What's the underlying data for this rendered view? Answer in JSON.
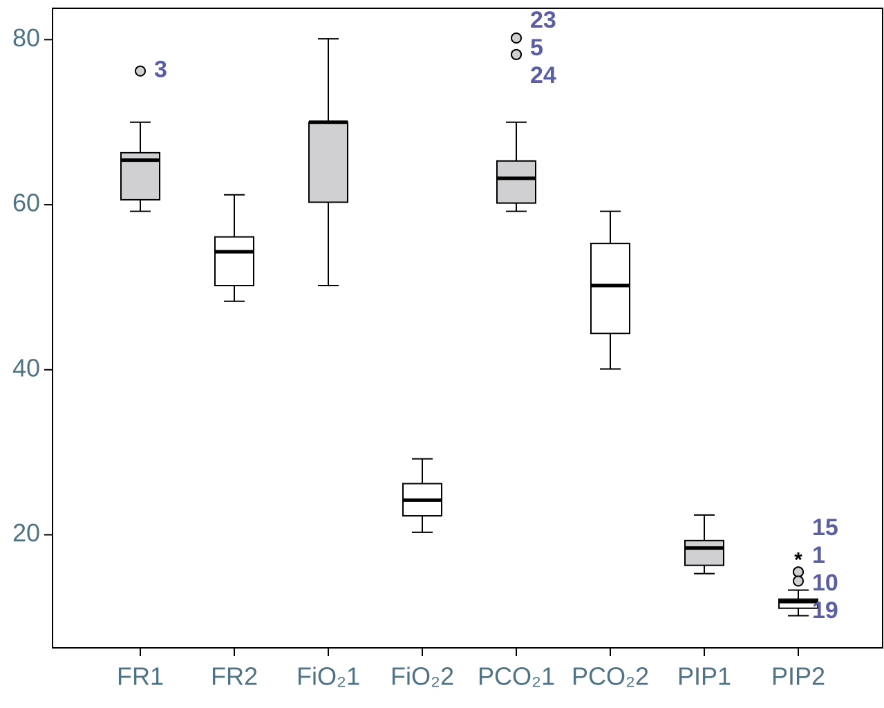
{
  "chart_data": {
    "type": "box",
    "categories": [
      "FR1",
      "FR2",
      "FiO₂1",
      "FiO₂2",
      "PCO₂1",
      "PCO₂2",
      "PIP1",
      "PIP2"
    ],
    "boxes": [
      {
        "whisker_low": 59.2,
        "q1": 60.6,
        "median": 65.4,
        "q3": 66.3,
        "whisker_high": 70.0,
        "fill": "#d0d0d2",
        "outliers": [
          {
            "value": 76.2,
            "label": "3",
            "marker": "circle"
          }
        ]
      },
      {
        "whisker_low": 48.3,
        "q1": 50.2,
        "median": 54.3,
        "q3": 56.1,
        "whisker_high": 61.2,
        "fill": "#ffffff",
        "outliers": []
      },
      {
        "whisker_low": 50.2,
        "q1": 60.3,
        "median": 70.0,
        "q3": 70.0,
        "whisker_high": 80.1,
        "fill": "#d0d0d2",
        "outliers": []
      },
      {
        "whisker_low": 20.3,
        "q1": 22.3,
        "median": 24.2,
        "q3": 26.2,
        "whisker_high": 29.2,
        "fill": "#ffffff",
        "outliers": []
      },
      {
        "whisker_low": 59.2,
        "q1": 60.2,
        "median": 63.2,
        "q3": 65.3,
        "whisker_high": 70.0,
        "fill": "#d0d0d2",
        "outliers": [
          {
            "value": 80.2,
            "label": "23",
            "marker": "circle"
          },
          {
            "value": 78.2,
            "label": "5",
            "marker": "circle"
          },
          {
            "value": 78.2,
            "label": "24",
            "marker": "circle"
          }
        ]
      },
      {
        "whisker_low": 40.1,
        "q1": 44.4,
        "median": 50.2,
        "q3": 55.3,
        "whisker_high": 59.2,
        "fill": "#ffffff",
        "outliers": []
      },
      {
        "whisker_low": 15.3,
        "q1": 16.3,
        "median": 18.4,
        "q3": 19.3,
        "whisker_high": 22.4,
        "fill": "#d0d0d2",
        "outliers": []
      },
      {
        "whisker_low": 10.2,
        "q1": 11.1,
        "median": 11.9,
        "q3": 12.2,
        "whisker_high": 13.3,
        "fill": "#ffffff",
        "outliers": [
          {
            "value": 17.3,
            "label": "15",
            "marker": "star"
          },
          {
            "value": 15.5,
            "label": "1",
            "marker": "circle"
          },
          {
            "value": 15.5,
            "label": "10",
            "marker": "circle"
          },
          {
            "value": 14.4,
            "label": "19",
            "marker": "circle"
          }
        ]
      }
    ],
    "ylim": [
      6.3,
      83.8
    ],
    "yticks": [
      20,
      40,
      60,
      80
    ],
    "tick_label_color": "#4f7384",
    "outlier_label_color": "#5a5fa3",
    "outlier_fill": "#d0d0d2"
  }
}
